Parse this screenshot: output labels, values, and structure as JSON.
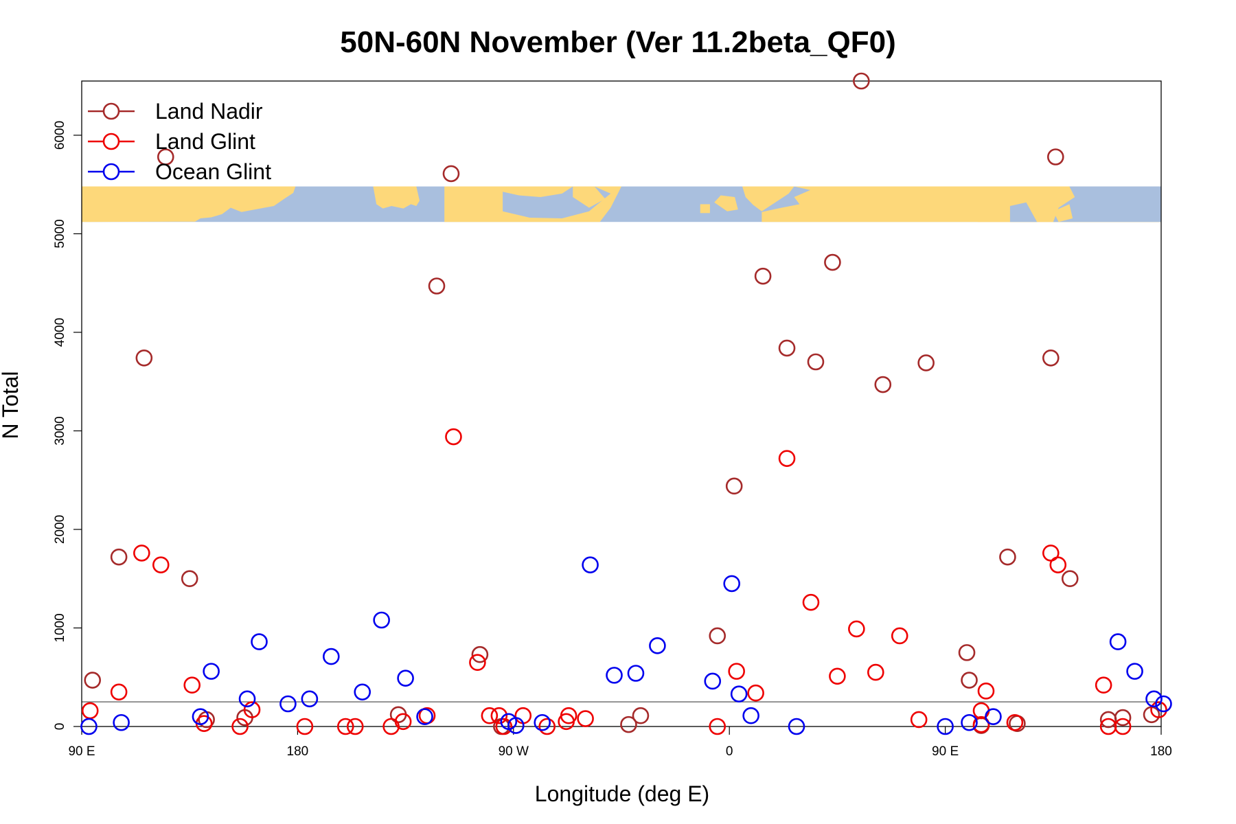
{
  "chart_data": {
    "type": "scatter",
    "title": "50N-60N November (Ver 11.2beta_QF0)",
    "xlabel": "Longitude (deg E)",
    "ylabel": "N Total",
    "xlim": [
      90,
      540
    ],
    "ylim": [
      0,
      6550
    ],
    "x_ticks": [
      {
        "value": 90,
        "label": "90 E"
      },
      {
        "value": 180,
        "label": "180"
      },
      {
        "value": 270,
        "label": "90 W"
      },
      {
        "value": 360,
        "label": "0"
      },
      {
        "value": 450,
        "label": "90 E"
      },
      {
        "value": 540,
        "label": "180"
      }
    ],
    "y_ticks": [
      {
        "value": 0,
        "label": "0"
      },
      {
        "value": 1000,
        "label": "1000"
      },
      {
        "value": 2000,
        "label": "2000"
      },
      {
        "value": 3000,
        "label": "3000"
      },
      {
        "value": 4000,
        "label": "4000"
      },
      {
        "value": 5000,
        "label": "5000"
      },
      {
        "value": 6000,
        "label": "6000"
      }
    ],
    "reference_line_y": 250,
    "map_strip": {
      "y_range": [
        5120,
        5480
      ],
      "land_color": "#fdd87a",
      "ocean_color": "#a9bfde"
    },
    "legend": {
      "position": "top-left"
    },
    "series": [
      {
        "name": "Land Nadir",
        "color": "#a52a2a",
        "x": [
          94.5,
          105.5,
          116,
          125,
          135,
          142,
          158,
          222,
          238,
          244,
          256,
          265,
          318,
          323,
          355,
          362,
          374,
          384,
          396,
          403,
          415,
          424,
          442,
          459,
          460,
          465,
          476,
          480,
          494,
          496,
          502,
          518,
          524,
          536
        ],
        "y": [
          470,
          1720,
          3740,
          5780,
          1500,
          70,
          90,
          120,
          4470,
          5610,
          730,
          0,
          20,
          110,
          920,
          2440,
          4570,
          3840,
          3700,
          4710,
          6550,
          3470,
          3690,
          750,
          470,
          10,
          1720,
          30,
          3740,
          5780,
          1500,
          70,
          90,
          120
        ]
      },
      {
        "name": "Land Glint",
        "color": "#ee0000",
        "x": [
          93.5,
          105.5,
          115,
          123,
          136,
          141,
          156,
          161,
          183,
          200,
          204,
          219,
          224,
          234,
          245,
          255,
          260,
          264,
          266,
          274,
          284,
          292,
          293,
          300,
          355,
          363,
          371,
          384,
          394,
          405,
          413,
          421,
          431,
          439,
          465,
          465,
          467,
          479,
          494,
          497,
          516,
          518,
          524,
          539
        ],
        "y": [
          160,
          350,
          1760,
          1640,
          420,
          30,
          0,
          170,
          0,
          0,
          0,
          0,
          50,
          110,
          2940,
          650,
          110,
          110,
          0,
          110,
          0,
          50,
          110,
          80,
          0,
          560,
          340,
          2720,
          1260,
          510,
          990,
          550,
          920,
          70,
          160,
          20,
          360,
          40,
          1760,
          1640,
          420,
          0,
          0,
          170
        ]
      },
      {
        "name": "Ocean Glint",
        "color": "#0000ee",
        "x": [
          93,
          106.5,
          139.5,
          144,
          159,
          164,
          176,
          185,
          194,
          207,
          215,
          225,
          233,
          268,
          271,
          282,
          302,
          312,
          321,
          330,
          361,
          353,
          364,
          369,
          388,
          450,
          460,
          470,
          529,
          537,
          522,
          541
        ],
        "y": [
          0,
          40,
          100,
          560,
          280,
          860,
          230,
          280,
          710,
          350,
          1080,
          490,
          100,
          50,
          10,
          40,
          1640,
          520,
          540,
          820,
          1450,
          460,
          330,
          110,
          0,
          0,
          40,
          100,
          560,
          280,
          860,
          230
        ]
      }
    ]
  }
}
